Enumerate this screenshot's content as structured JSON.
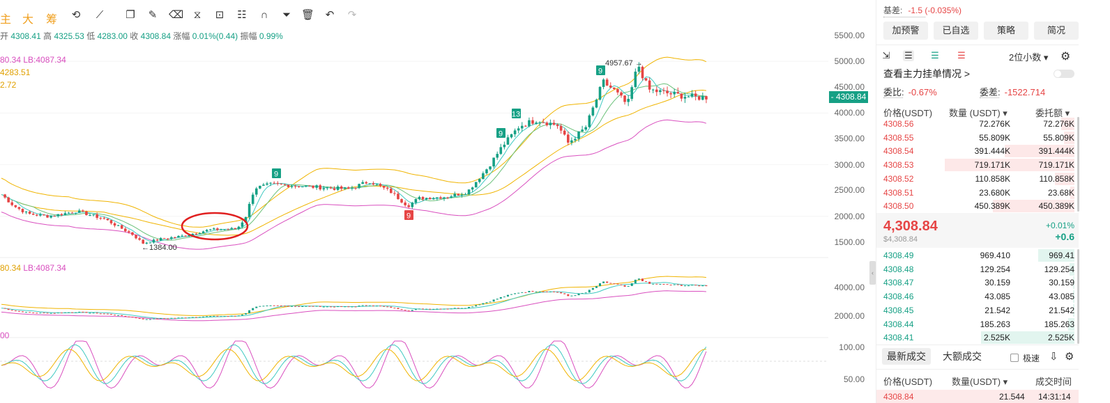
{
  "toolbar": {
    "labels": [
      "主",
      "大",
      "筹"
    ],
    "icons": [
      "indicator-icon",
      "draw-line-icon",
      "copy-icon",
      "pen-icon",
      "eraser-icon",
      "measure-icon",
      "lock-icon",
      "note-icon",
      "magnet-icon",
      "filter-icon",
      "trash-icon",
      "undo-icon",
      "redo-icon"
    ]
  },
  "ohlc": {
    "open_label": "开",
    "open": "4308.41",
    "high_label": "高",
    "high": "4325.53",
    "low_label": "低",
    "low": "4283.00",
    "close_label": "收",
    "close": "4308.84",
    "change_label": "涨幅",
    "change": "0.01%(0.44)",
    "amplitude_label": "振幅",
    "amplitude": "0.99%"
  },
  "indicators_main": {
    "line1_a": "80.34",
    "line1_b": "LB:4087.34",
    "line2": "4283.51",
    "line3": "2.72"
  },
  "indicators_sub": {
    "line1_a": "80.34",
    "line1_b": "LB:4087.34"
  },
  "indicators_osc": {
    "line1": "00"
  },
  "y_axis_main": [
    "5500.00",
    "5000.00",
    "4500.00",
    "4000.00",
    "3500.00",
    "3000.00",
    "2500.00",
    "2000.00",
    "1500.00"
  ],
  "y_axis_sub": [
    "4000.00",
    "2000.00"
  ],
  "y_axis_osc": [
    "100.00",
    "50.00"
  ],
  "current_price_tag": "- 4308.84",
  "annotations": {
    "high": "4957.67 →",
    "low": "←1384.00"
  },
  "td_markers": [
    "9",
    "13",
    "9",
    "9",
    "9"
  ],
  "colors": {
    "up": "#16a085",
    "down": "#e64545",
    "ma_yellow": "#f0b400",
    "ma_pink": "#d94fbf",
    "ma_teal": "#3ec9c1",
    "ma_green": "#6bc17a",
    "highlight_circle": "#e02020",
    "ui_accent": "#f0a020"
  },
  "panel": {
    "basis_label": "基差:",
    "basis_value": "-1.5 (-0.035%)",
    "buttons": [
      "加预警",
      "已自选",
      "策略",
      "简况"
    ],
    "view_icons": [
      "depth-both-icon",
      "depth-bid-icon",
      "depth-list-icon",
      "depth-ask-icon"
    ],
    "decimals": "2位小数 ▾",
    "mainforce_label": "查看主力挂单情况 >",
    "ratio_label": "委比:",
    "ratio_value": "-0.67%",
    "diff_label": "委差:",
    "diff_value": "-1522.714",
    "headers": {
      "price": "价格(USDT)",
      "qty": "数量 (USDT) ▾",
      "total": "委托额 ▾"
    },
    "asks": [
      {
        "price": "4308.56",
        "qty": "72.276K",
        "total": "72.276K",
        "depth": 0.1
      },
      {
        "price": "4308.55",
        "qty": "55.809K",
        "total": "55.809K",
        "depth": 0.08
      },
      {
        "price": "4308.54",
        "qty": "391.444K",
        "total": "391.444K",
        "depth": 0.54
      },
      {
        "price": "4308.53",
        "qty": "719.171K",
        "total": "719.171K",
        "depth": 1.0
      },
      {
        "price": "4308.52",
        "qty": "110.858K",
        "total": "110.858K",
        "depth": 0.15
      },
      {
        "price": "4308.51",
        "qty": "23.680K",
        "total": "23.68K",
        "depth": 0.03
      },
      {
        "price": "4308.50",
        "qty": "450.389K",
        "total": "450.389K",
        "depth": 0.63
      }
    ],
    "last_price": "4,308.84",
    "last_price_usd": "$4,308.84",
    "change_pct": "+0.01%",
    "change_abs": "+0.6",
    "bids": [
      {
        "price": "4308.49",
        "qty": "969.410",
        "total": "969.41",
        "depth": 0.28
      },
      {
        "price": "4308.48",
        "qty": "129.254",
        "total": "129.254",
        "depth": 0.04
      },
      {
        "price": "4308.47",
        "qty": "30.159",
        "total": "30.159",
        "depth": 0.01
      },
      {
        "price": "4308.46",
        "qty": "43.085",
        "total": "43.085",
        "depth": 0.01
      },
      {
        "price": "4308.45",
        "qty": "21.542",
        "total": "21.542",
        "depth": 0.01
      },
      {
        "price": "4308.44",
        "qty": "185.263",
        "total": "185.263",
        "depth": 0.05
      },
      {
        "price": "4308.41",
        "qty": "2.525K",
        "total": "2.525K",
        "depth": 0.72
      }
    ],
    "trade_tabs": [
      "最新成交",
      "大额成交"
    ],
    "fast_label": "极速",
    "trade_headers": {
      "price": "价格(USDT)",
      "qty": "数量(USDT) ▾",
      "time": "成交时间"
    },
    "trade_row": {
      "price": "4308.84",
      "qty": "21.544",
      "time": "14:31:14"
    }
  }
}
